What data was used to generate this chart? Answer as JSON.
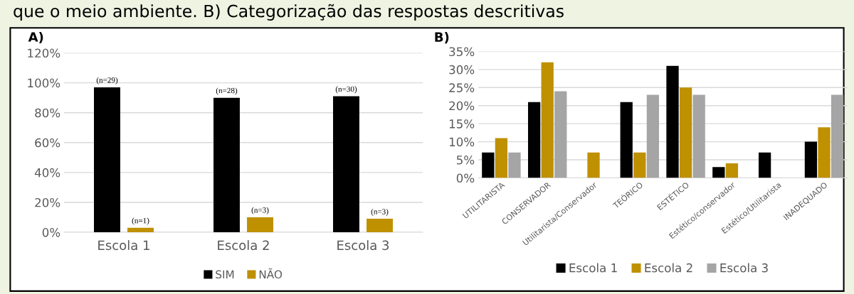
{
  "chart_data": [
    {
      "type": "bar",
      "title": "A)",
      "annotations": [
        "que o meio ambiente. B) Categorização das respostas descritivas",
        "(n=29)",
        "(n=28)",
        "(n=30)",
        "(n=1)",
        "(n=3)",
        "(n=3)"
      ],
      "categories": [
        "Escola 1",
        "Escola 2",
        "Escola 3"
      ],
      "series": [
        {
          "name": "SIM",
          "color": "#000000",
          "values": [
            97,
            90,
            91
          ]
        },
        {
          "name": "NÃO",
          "color": "#bf9000",
          "values": [
            3,
            10,
            9
          ]
        }
      ],
      "ylim": [
        0,
        120
      ],
      "yticks": [
        {
          "value": 0,
          "label": "0%"
        },
        {
          "value": 20,
          "label": "20%"
        },
        {
          "value": 40,
          "label": "40%"
        },
        {
          "value": 60,
          "label": "60%"
        },
        {
          "value": 80,
          "label": "80%"
        },
        {
          "value": 100,
          "label": "100%"
        },
        {
          "value": 120,
          "label": "120%"
        }
      ],
      "grid": "y",
      "legend": "bottom"
    },
    {
      "type": "bar",
      "title": "B)",
      "categories": [
        "UTILITARISTA",
        "CONSERVADOR",
        "Utilitarista/Conservador",
        "TEÓRICO",
        "ESTÉTICO",
        "Estético/conservador",
        "Estético/Utilitarista",
        "INADEQUADO"
      ],
      "series": [
        {
          "name": "Escola 1",
          "color": "#000000",
          "values": [
            7,
            21,
            null,
            21,
            31,
            3,
            7,
            10
          ]
        },
        {
          "name": "Escola 2",
          "color": "#bf9000",
          "values": [
            11,
            32,
            7,
            7,
            25,
            4,
            null,
            14
          ]
        },
        {
          "name": "Escola 3",
          "color": "#a5a5a5",
          "values": [
            7,
            24,
            null,
            23,
            23,
            null,
            null,
            23
          ]
        }
      ],
      "ylim": [
        0,
        35
      ],
      "yticks": [
        {
          "value": 0,
          "label": "0%"
        },
        {
          "value": 5,
          "label": "5%"
        },
        {
          "value": 10,
          "label": "10%"
        },
        {
          "value": 15,
          "label": "15%"
        },
        {
          "value": 20,
          "label": "20%"
        },
        {
          "value": 25,
          "label": "25%"
        },
        {
          "value": 30,
          "label": "30%"
        },
        {
          "value": 35,
          "label": "35%"
        }
      ],
      "grid": "y",
      "legend": "bottom"
    }
  ]
}
